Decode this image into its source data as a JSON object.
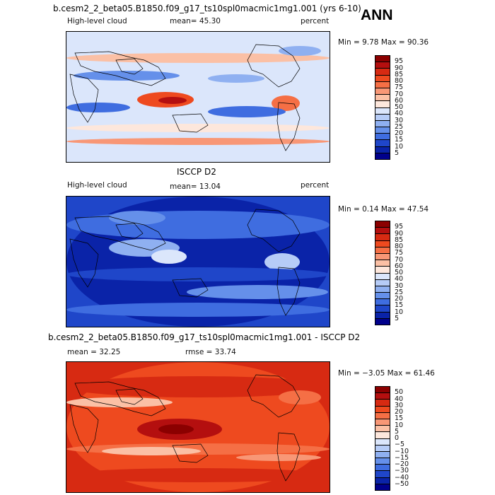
{
  "season": "ANN",
  "panels": [
    {
      "title": "b.cesm2_2_beta05.B1850.f09_g17_ts10spl0macmic1mg1.001 (yrs 6-10)",
      "variable": "High-level cloud",
      "mean_text": "mean=  45.30",
      "units": "percent",
      "min_text": "Min =   9.78 Max =  90.36",
      "palette": "cool-warm",
      "colorbar_labels": [
        "95",
        "90",
        "85",
        "80",
        "75",
        "70",
        "60",
        "50",
        "40",
        "30",
        "25",
        "20",
        "15",
        "10",
        "5"
      ],
      "colorbar_colors": [
        "#8b0000",
        "#b40f0f",
        "#d72a12",
        "#ee4a1f",
        "#f56f45",
        "#f89776",
        "#fbc0a5",
        "#fde7dc",
        "#dbe6fb",
        "#b6ccf7",
        "#8fb0f1",
        "#6590ea",
        "#3f6de0",
        "#1f46c9",
        "#0a23a8",
        "#00008b"
      ]
    },
    {
      "title": "ISCCP D2",
      "variable": "High-level cloud",
      "mean_text": "mean=  13.04",
      "units": "percent",
      "min_text": "Min =  0.14 Max =  47.54",
      "palette": "blue",
      "colorbar_labels": [
        "95",
        "90",
        "85",
        "80",
        "75",
        "70",
        "60",
        "50",
        "40",
        "30",
        "25",
        "20",
        "15",
        "10",
        "5"
      ],
      "colorbar_colors": [
        "#8b0000",
        "#b40f0f",
        "#d72a12",
        "#ee4a1f",
        "#f56f45",
        "#f89776",
        "#fbc0a5",
        "#fde7dc",
        "#dbe6fb",
        "#b6ccf7",
        "#8fb0f1",
        "#6590ea",
        "#3f6de0",
        "#1f46c9",
        "#0a23a8",
        "#00008b"
      ]
    },
    {
      "title": "b.cesm2_2_beta05.B1850.f09_g17_ts10spl0macmic1mg1.001 - ISCCP D2",
      "mean_text": "mean =   32.25",
      "rmse_text": "rmse =   33.74",
      "min_text": "Min =  −3.05 Max =  61.46",
      "palette": "red",
      "colorbar_labels": [
        "50",
        "40",
        "30",
        "20",
        "15",
        "10",
        "5",
        "0",
        "−5",
        "−10",
        "−15",
        "−20",
        "−30",
        "−40",
        "−50"
      ],
      "colorbar_colors": [
        "#8b0000",
        "#b40f0f",
        "#d72a12",
        "#ee4a1f",
        "#f56f45",
        "#f89776",
        "#fbc0a5",
        "#fde7dc",
        "#dbe6fb",
        "#b6ccf7",
        "#8fb0f1",
        "#6590ea",
        "#3f6de0",
        "#1f46c9",
        "#0a23a8",
        "#00008b"
      ]
    }
  ]
}
